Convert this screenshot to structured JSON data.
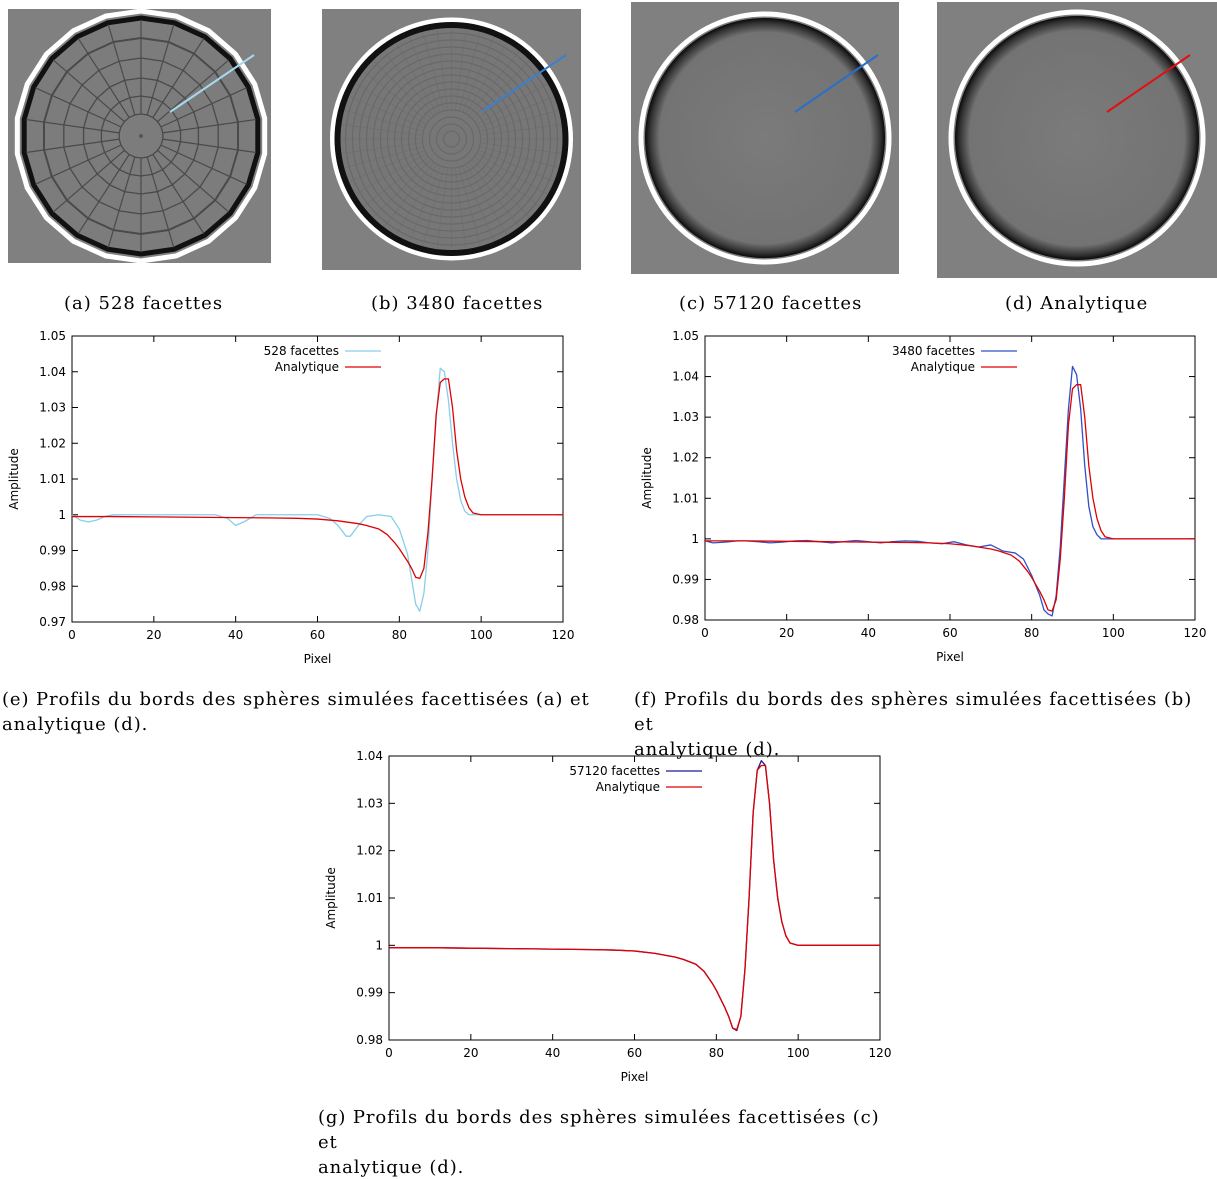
{
  "captions": {
    "a": "(a) 528 facettes",
    "b": "(b) 3480 facettes",
    "c": "(c) 57120 facettes",
    "d": "(d) Analytique",
    "e": [
      "(e) Profils du bords des sphères simulées facettisées (a) et",
      "analytique (d)."
    ],
    "f": [
      "(f) Profils du bords des sphères simulées facettisées (b) et",
      "analytique (d)."
    ],
    "g": [
      "(g) Profils du bords des sphères simulées facettisées (c) et",
      "analytique (d)."
    ]
  },
  "images": [
    {
      "id": "a",
      "facets": 528,
      "line_color": "#a8d8f0"
    },
    {
      "id": "b",
      "facets": 3480,
      "line_color": "#3a7fd0"
    },
    {
      "id": "c",
      "facets": 57120,
      "line_color": "#2a6fc8"
    },
    {
      "id": "d",
      "facets": null,
      "line_color": "#e01010"
    }
  ],
  "chart_data": [
    {
      "id": "e",
      "type": "line",
      "xlabel": "Pixel",
      "ylabel": "Amplitude",
      "xlim": [
        0,
        120
      ],
      "ylim": [
        0.97,
        1.05
      ],
      "xticks": [
        0,
        20,
        40,
        60,
        80,
        100,
        120
      ],
      "yticks": [
        "0.97",
        "0.98",
        "0.99",
        "1",
        "1.01",
        "1.02",
        "1.03",
        "1.04",
        "1.05"
      ],
      "ytick_values": [
        0.97,
        0.98,
        0.99,
        1,
        1.01,
        1.02,
        1.03,
        1.04,
        1.05
      ],
      "legend": "top-center",
      "series": [
        {
          "name": "528 facettes",
          "color": "#87ceeb",
          "x": [
            0,
            2,
            4,
            6,
            8,
            10,
            15,
            20,
            25,
            30,
            35,
            38,
            40,
            42,
            45,
            50,
            55,
            60,
            63,
            65,
            67,
            68,
            70,
            72,
            75,
            78,
            80,
            82,
            83,
            84,
            85,
            86,
            87,
            88,
            89,
            90,
            91,
            92,
            93,
            94,
            95,
            96,
            97,
            98,
            100,
            105,
            110,
            120
          ],
          "y": [
            1.0,
            0.9985,
            0.998,
            0.9985,
            0.9995,
            1.0,
            1.0,
            1.0,
            1.0,
            1.0,
            1.0,
            0.999,
            0.997,
            0.998,
            1.0,
            1.0,
            1.0,
            1.0,
            0.999,
            0.997,
            0.994,
            0.994,
            0.997,
            0.9995,
            1.0,
            0.9995,
            0.996,
            0.989,
            0.982,
            0.975,
            0.973,
            0.978,
            0.99,
            1.01,
            1.027,
            1.041,
            1.04,
            1.032,
            1.02,
            1.01,
            1.004,
            1.001,
            1.0,
            1.0,
            1.0,
            1.0,
            1.0,
            1.0
          ]
        },
        {
          "name": "Analytique",
          "color": "#e00000",
          "x": [
            0,
            10,
            20,
            30,
            40,
            50,
            55,
            60,
            65,
            70,
            72,
            75,
            77,
            79,
            80,
            82,
            83,
            84,
            85,
            86,
            87,
            88,
            89,
            90,
            91,
            92,
            93,
            94,
            95,
            96,
            97,
            98,
            100,
            105,
            110,
            120
          ],
          "y": [
            0.9995,
            0.9995,
            0.9994,
            0.9993,
            0.9992,
            0.9991,
            0.999,
            0.9988,
            0.9983,
            0.9975,
            0.997,
            0.996,
            0.9945,
            0.992,
            0.9905,
            0.987,
            0.985,
            0.9825,
            0.9822,
            0.985,
            0.995,
            1.01,
            1.028,
            1.037,
            1.038,
            1.038,
            1.03,
            1.018,
            1.01,
            1.005,
            1.002,
            1.0005,
            1.0,
            1.0,
            1.0,
            1.0
          ]
        }
      ]
    },
    {
      "id": "f",
      "type": "line",
      "xlabel": "Pixel",
      "ylabel": "Amplitude",
      "xlim": [
        0,
        120
      ],
      "ylim": [
        0.98,
        1.05
      ],
      "xticks": [
        0,
        20,
        40,
        60,
        80,
        100,
        120
      ],
      "yticks": [
        "0.98",
        "0.99",
        "1",
        "1.01",
        "1.02",
        "1.03",
        "1.04",
        "1.05"
      ],
      "ytick_values": [
        0.98,
        0.99,
        1,
        1.01,
        1.02,
        1.03,
        1.04,
        1.05
      ],
      "legend": "top-center",
      "series": [
        {
          "name": "3480 facettes",
          "color": "#3050c8",
          "x": [
            0,
            2,
            5,
            8,
            10,
            13,
            16,
            19,
            22,
            25,
            28,
            31,
            34,
            37,
            40,
            43,
            46,
            49,
            52,
            55,
            58,
            61,
            64,
            67,
            70,
            73,
            76,
            78,
            80,
            82,
            83,
            84,
            85,
            86,
            87,
            88,
            89,
            90,
            91,
            92,
            93,
            94,
            95,
            96,
            97,
            98,
            100,
            110,
            120
          ],
          "y": [
            0.9995,
            0.999,
            0.9992,
            0.9995,
            0.9995,
            0.9993,
            0.999,
            0.9992,
            0.9995,
            0.9996,
            0.9993,
            0.999,
            0.9993,
            0.9996,
            0.9993,
            0.999,
            0.9993,
            0.9995,
            0.9994,
            0.999,
            0.9988,
            0.9993,
            0.9985,
            0.998,
            0.9985,
            0.997,
            0.9965,
            0.995,
            0.991,
            0.986,
            0.9825,
            0.9815,
            0.981,
            0.986,
            0.998,
            1.015,
            1.032,
            1.0425,
            1.0405,
            1.032,
            1.018,
            1.008,
            1.003,
            1.001,
            1.0,
            1.0,
            1.0,
            1.0,
            1.0
          ]
        },
        {
          "name": "Analytique",
          "color": "#e00000",
          "x": [
            0,
            10,
            20,
            30,
            40,
            50,
            55,
            60,
            65,
            70,
            72,
            75,
            77,
            79,
            80,
            82,
            83,
            84,
            85,
            86,
            87,
            88,
            89,
            90,
            91,
            92,
            93,
            94,
            95,
            96,
            97,
            98,
            100,
            105,
            110,
            120
          ],
          "y": [
            0.9995,
            0.9995,
            0.9994,
            0.9993,
            0.9992,
            0.9991,
            0.999,
            0.9988,
            0.9983,
            0.9975,
            0.997,
            0.996,
            0.9945,
            0.992,
            0.9905,
            0.987,
            0.985,
            0.9825,
            0.9822,
            0.985,
            0.995,
            1.01,
            1.028,
            1.037,
            1.038,
            1.038,
            1.03,
            1.018,
            1.01,
            1.005,
            1.002,
            1.0005,
            1.0,
            1.0,
            1.0,
            1.0
          ]
        }
      ]
    },
    {
      "id": "g",
      "type": "line",
      "xlabel": "Pixel",
      "ylabel": "Amplitude",
      "xlim": [
        0,
        120
      ],
      "ylim": [
        0.98,
        1.04
      ],
      "xticks": [
        0,
        20,
        40,
        60,
        80,
        100,
        120
      ],
      "yticks": [
        "0.98",
        "0.99",
        "1",
        "1.01",
        "1.02",
        "1.03",
        "1.04"
      ],
      "ytick_values": [
        0.98,
        0.99,
        1,
        1.01,
        1.02,
        1.03,
        1.04
      ],
      "legend": "top-center",
      "series": [
        {
          "name": "57120 facettes",
          "color": "#1a1a9a",
          "x": [
            0,
            10,
            20,
            30,
            40,
            50,
            55,
            60,
            65,
            70,
            72,
            75,
            77,
            79,
            80,
            82,
            83,
            84,
            85,
            86,
            87,
            88,
            89,
            90,
            91,
            92,
            93,
            94,
            95,
            96,
            97,
            98,
            100,
            105,
            110,
            120
          ],
          "y": [
            0.9995,
            0.9995,
            0.9994,
            0.9993,
            0.9992,
            0.9991,
            0.999,
            0.9988,
            0.9983,
            0.9975,
            0.997,
            0.996,
            0.9945,
            0.992,
            0.9905,
            0.987,
            0.985,
            0.9825,
            0.982,
            0.985,
            0.995,
            1.01,
            1.028,
            1.037,
            1.039,
            1.038,
            1.03,
            1.018,
            1.01,
            1.005,
            1.002,
            1.0005,
            1.0,
            1.0,
            1.0,
            1.0
          ]
        },
        {
          "name": "Analytique",
          "color": "#e00000",
          "x": [
            0,
            10,
            20,
            30,
            40,
            50,
            55,
            60,
            65,
            70,
            72,
            75,
            77,
            79,
            80,
            82,
            83,
            84,
            85,
            86,
            87,
            88,
            89,
            90,
            91,
            92,
            93,
            94,
            95,
            96,
            97,
            98,
            100,
            105,
            110,
            120
          ],
          "y": [
            0.9995,
            0.9995,
            0.9994,
            0.9993,
            0.9992,
            0.9991,
            0.999,
            0.9988,
            0.9983,
            0.9975,
            0.997,
            0.996,
            0.9945,
            0.992,
            0.9905,
            0.987,
            0.985,
            0.9825,
            0.9822,
            0.985,
            0.995,
            1.01,
            1.028,
            1.037,
            1.038,
            1.038,
            1.03,
            1.018,
            1.01,
            1.005,
            1.002,
            1.0005,
            1.0,
            1.0,
            1.0,
            1.0
          ]
        }
      ]
    }
  ]
}
